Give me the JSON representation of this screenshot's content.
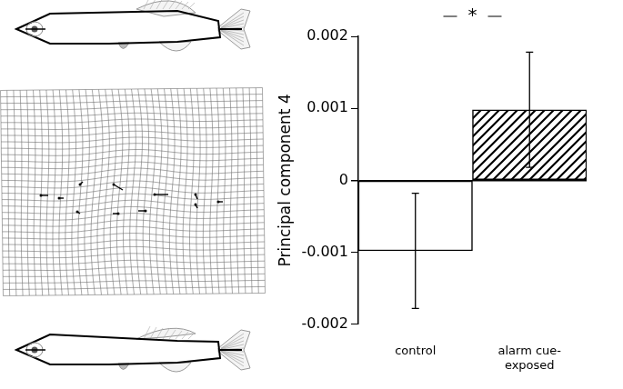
{
  "chart_data": {
    "type": "bar",
    "y_label": "Principal component 4",
    "categories": [
      "control",
      "alarm cue-exposed"
    ],
    "values": [
      -0.00098,
      0.00098
    ],
    "errors": [
      0.0008,
      0.0008
    ],
    "colors": [
      "#ffffff",
      "#ffffff"
    ],
    "ylim": [
      -0.002,
      0.002
    ],
    "yticks": [
      -0.002,
      -0.001,
      0,
      0.001,
      0.002
    ],
    "annotation": "*",
    "grid": false,
    "legend": false
  }
}
